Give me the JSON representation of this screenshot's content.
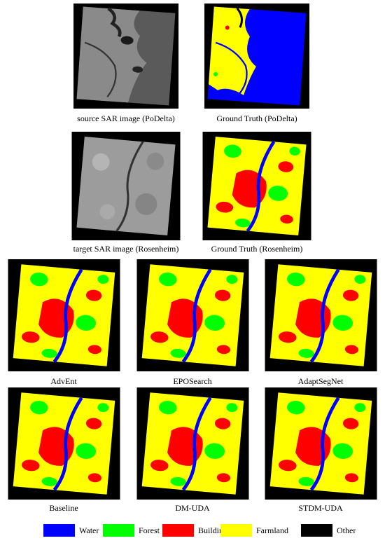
{
  "captions": [
    "source SAR image (PoDelta)",
    "Ground Truth (PoDelta)",
    "target SAR image (Rosenheim)",
    "Ground Truth (Rosenheim)",
    "AdvEnt",
    "EPOSearch",
    "AdaptSegNet",
    "Baseline",
    "DM-UDA",
    "STDM-UDA"
  ],
  "legend": [
    {
      "label": "Water",
      "color": "#0000ff"
    },
    {
      "label": "Forest",
      "color": "#00ff00"
    },
    {
      "label": "Building",
      "color": "#ff0000"
    },
    {
      "label": "Farmland",
      "color": "#ffff00"
    },
    {
      "label": "Other",
      "color": "#000000"
    }
  ]
}
